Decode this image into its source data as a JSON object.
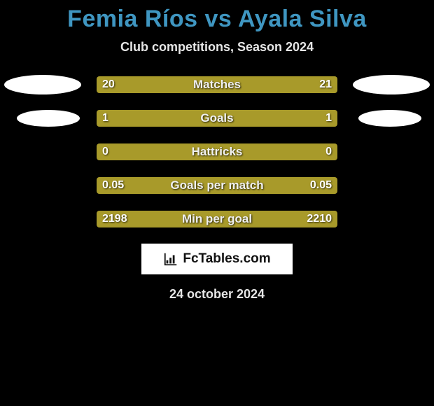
{
  "title": "Femia Ríos vs Ayala Silva",
  "subtitle": "Club competitions, Season 2024",
  "date": "24 october 2024",
  "logo_text": "FcTables.com",
  "colors": {
    "bar_left": "#a89a2a",
    "bar_right": "#a89a2a",
    "muted": "#7b7b7b",
    "title": "#3f96c1",
    "text": "#e6e6e6",
    "bg": "#000000"
  },
  "rows": [
    {
      "label": "Matches",
      "left_value": "20",
      "right_value": "21",
      "left_pct": 48.8,
      "right_pct": 51.2,
      "show_avatar_left": true,
      "show_avatar_right": true,
      "avatar_size": "large"
    },
    {
      "label": "Goals",
      "left_value": "1",
      "right_value": "1",
      "left_pct": 50,
      "right_pct": 50,
      "show_avatar_left": true,
      "show_avatar_right": true,
      "avatar_size": "small"
    },
    {
      "label": "Hattricks",
      "left_value": "0",
      "right_value": "0",
      "left_pct": 50,
      "right_pct": 50,
      "show_avatar_left": false,
      "show_avatar_right": false
    },
    {
      "label": "Goals per match",
      "left_value": "0.05",
      "right_value": "0.05",
      "left_pct": 50,
      "right_pct": 50,
      "show_avatar_left": false,
      "show_avatar_right": false
    },
    {
      "label": "Min per goal",
      "left_value": "2198",
      "right_value": "2210",
      "left_pct": 49.9,
      "right_pct": 50.1,
      "show_avatar_left": false,
      "show_avatar_right": false
    }
  ]
}
